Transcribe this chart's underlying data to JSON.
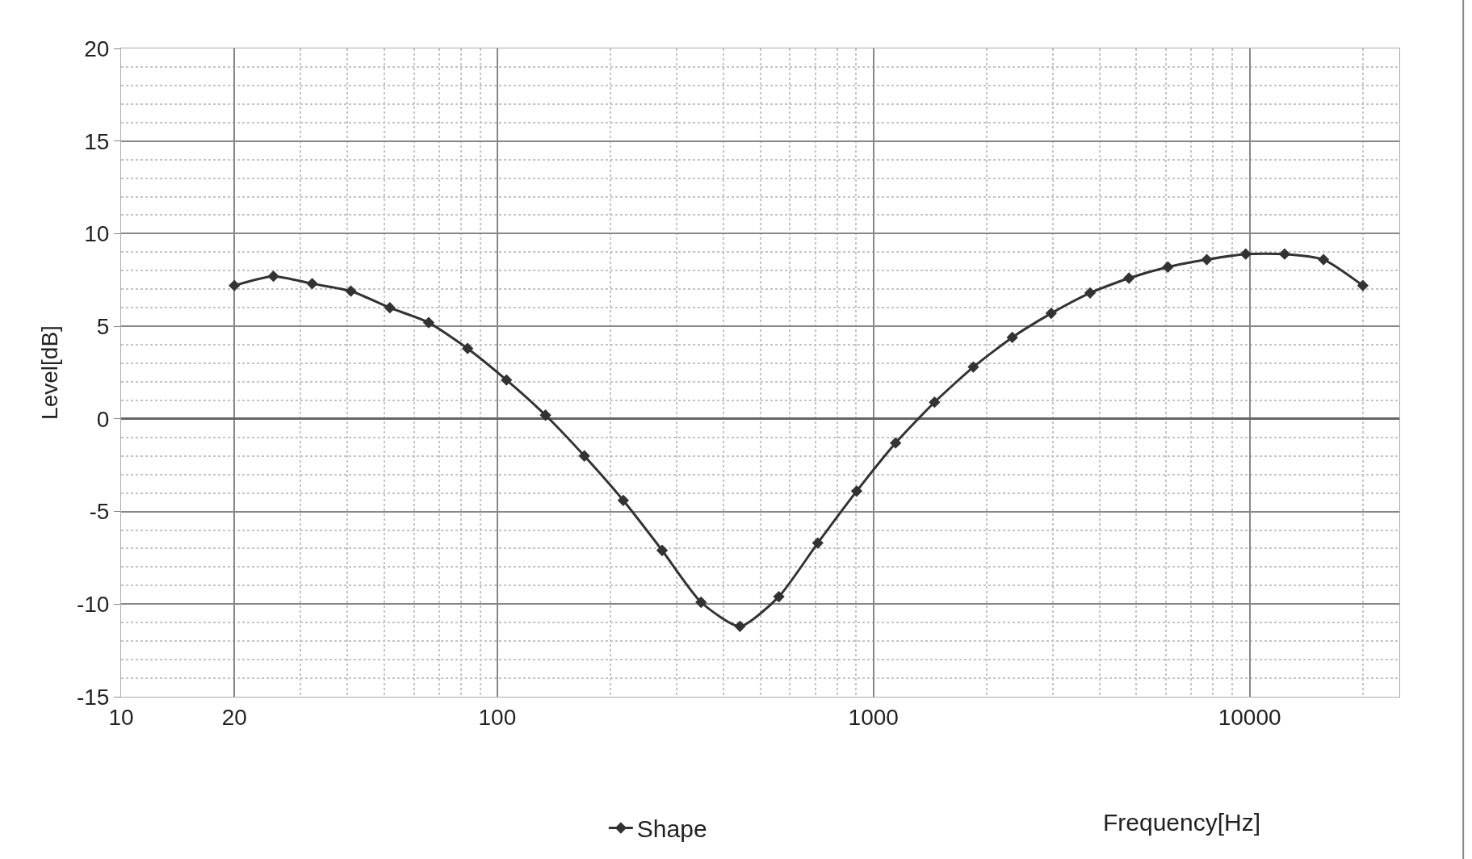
{
  "chart_data": {
    "type": "line",
    "xlabel": "Frequency[Hz]",
    "ylabel": "Level[dB]",
    "log": "x",
    "xlim": [
      10,
      25000
    ],
    "xticks": [
      10,
      20,
      100,
      1000,
      10000
    ],
    "ylim": [
      -15,
      20
    ],
    "yticks": [
      -15,
      -10,
      -5,
      0,
      5,
      10,
      15,
      20
    ],
    "grid": true,
    "legend": "bottom",
    "marker": "diamond",
    "line_style": "solid",
    "x": [
      20,
      25.4,
      32.2,
      40.8,
      51.8,
      65.7,
      83.4,
      105.8,
      134.3,
      170.4,
      216.2,
      274.3,
      348.1,
      441.6,
      560.4,
      711.1,
      902.3,
      1145,
      1453,
      1843,
      2339,
      2968,
      3766,
      4778,
      6063,
      7693,
      9762,
      12387,
      15718,
      20000
    ],
    "series": [
      {
        "name": "Shape",
        "color": "#333333",
        "values": [
          7.2,
          7.7,
          7.3,
          6.9,
          6.0,
          5.2,
          3.8,
          2.1,
          0.2,
          -2.0,
          -4.4,
          -7.1,
          -9.9,
          -11.2,
          -9.6,
          -6.7,
          -3.9,
          -1.3,
          0.9,
          2.8,
          4.4,
          5.7,
          6.8,
          7.6,
          8.2,
          8.6,
          8.9,
          8.9,
          8.6,
          7.2
        ]
      }
    ]
  }
}
